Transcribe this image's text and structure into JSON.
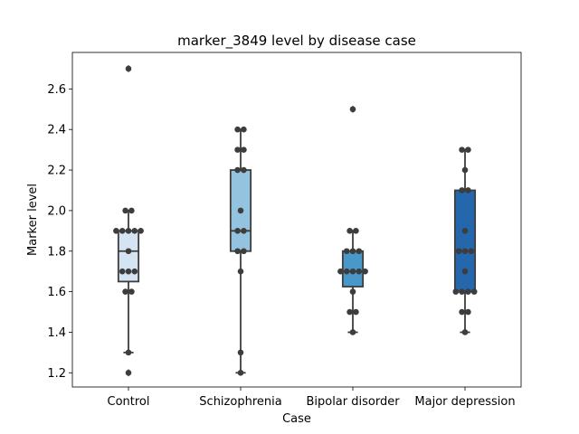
{
  "chart_data": {
    "type": "box",
    "title": "marker_3849 level by disease case",
    "xlabel": "Case",
    "ylabel": "Marker level",
    "ylim": [
      1.13,
      2.78
    ],
    "yticks": [
      "1.2",
      "1.4",
      "1.6",
      "1.8",
      "2.0",
      "2.2",
      "2.4",
      "2.6"
    ],
    "categories": [
      "Control",
      "Schizophrenia",
      "Bipolar disorder",
      "Major depression"
    ],
    "colors": [
      "#d4e4f2",
      "#94c3df",
      "#4a97c9",
      "#2567ad"
    ],
    "boxes": [
      {
        "q1": 1.65,
        "median": 1.8,
        "q3": 1.9,
        "whisker_low": 1.3,
        "whisker_high": 2.0,
        "outliers": [
          2.7,
          1.2
        ]
      },
      {
        "q1": 1.8,
        "median": 1.9,
        "q3": 2.2,
        "whisker_low": 1.2,
        "whisker_high": 2.4,
        "outliers": []
      },
      {
        "q1": 1.625,
        "median": 1.7,
        "q3": 1.8,
        "whisker_low": 1.4,
        "whisker_high": 1.9,
        "outliers": [
          2.5
        ]
      },
      {
        "q1": 1.6,
        "median": 1.8,
        "q3": 2.1,
        "whisker_low": 1.4,
        "whisker_high": 2.3,
        "outliers": []
      }
    ],
    "points": [
      [
        1.2,
        1.3,
        1.6,
        1.6,
        1.7,
        1.7,
        1.7,
        1.8,
        1.9,
        1.9,
        1.9,
        1.9,
        1.9,
        2.0,
        2.0,
        2.7
      ],
      [
        1.2,
        1.3,
        1.7,
        1.8,
        1.8,
        1.9,
        1.9,
        2.0,
        2.2,
        2.2,
        2.3,
        2.3,
        2.4,
        2.4
      ],
      [
        1.4,
        1.5,
        1.5,
        1.6,
        1.7,
        1.7,
        1.7,
        1.7,
        1.7,
        1.8,
        1.8,
        1.8,
        1.9,
        1.9,
        2.5
      ],
      [
        1.4,
        1.5,
        1.5,
        1.6,
        1.6,
        1.6,
        1.6,
        1.7,
        1.8,
        1.8,
        1.8,
        1.9,
        2.1,
        2.1,
        2.2,
        2.3,
        2.3
      ]
    ]
  }
}
